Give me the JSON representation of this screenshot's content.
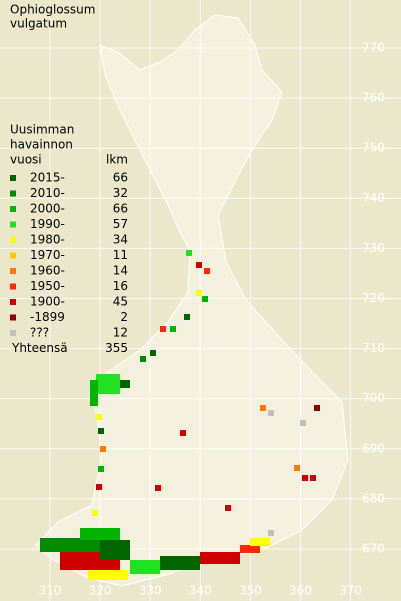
{
  "title": [
    "Ophioglossum",
    "vulgatum"
  ],
  "legend": {
    "title": [
      "Uusimman",
      "havainnon",
      "vuosi"
    ],
    "count_header": "lkm",
    "entries": [
      {
        "label": "2015-",
        "count": 66,
        "color": "#006400"
      },
      {
        "label": "2010-",
        "count": 32,
        "color": "#008c00"
      },
      {
        "label": "2000-",
        "count": 66,
        "color": "#00b400"
      },
      {
        "label": "1990-",
        "count": 57,
        "color": "#20e020"
      },
      {
        "label": "1980-",
        "count": 34,
        "color": "#ffff00"
      },
      {
        "label": "1970-",
        "count": 11,
        "color": "#ffc800"
      },
      {
        "label": "1960-",
        "count": 14,
        "color": "#ff7800"
      },
      {
        "label": "1950-",
        "count": 16,
        "color": "#ff2800"
      },
      {
        "label": "1900-",
        "count": 45,
        "color": "#d00000"
      },
      {
        "label": "-1899",
        "count": 2,
        "color": "#8b0000"
      },
      {
        "label": "???",
        "count": 12,
        "color": "#c0c0c0"
      }
    ],
    "total_label": "Yhteensä",
    "total": 355
  },
  "yticks": [
    770,
    760,
    750,
    740,
    730,
    720,
    710,
    700,
    690,
    680,
    670
  ],
  "xticks": [
    310,
    320,
    330,
    340,
    350,
    360,
    370
  ]
}
